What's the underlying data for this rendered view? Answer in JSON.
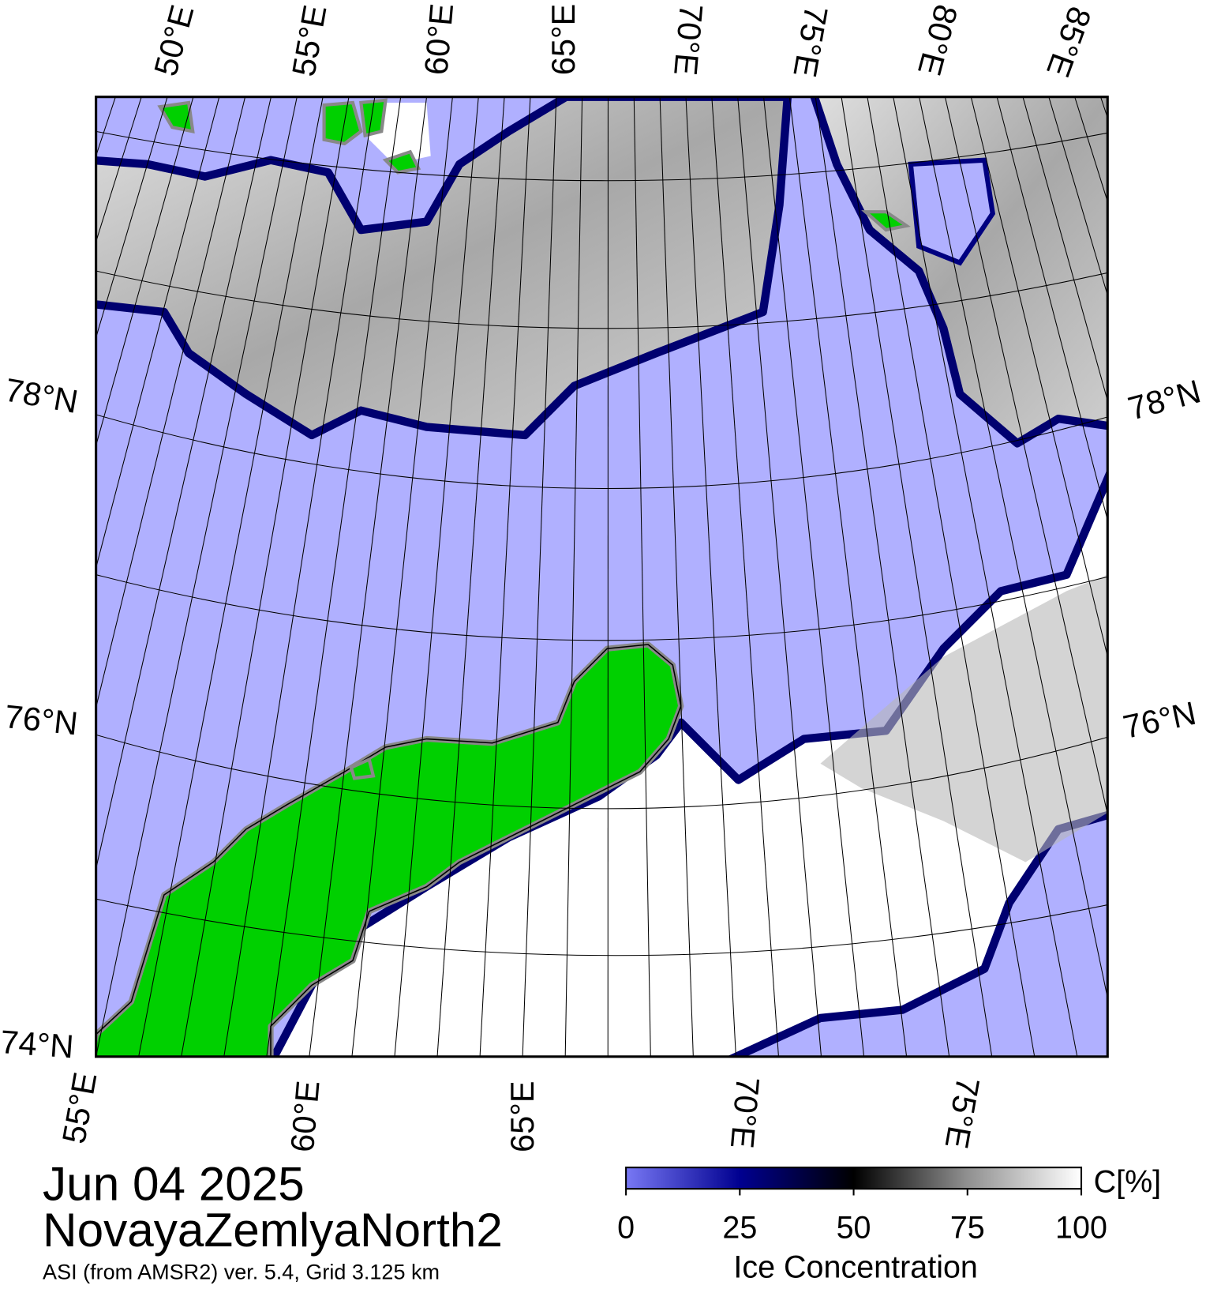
{
  "map": {
    "top_lon_labels": [
      "50°E",
      "55°E",
      "60°E",
      "65°E",
      "70°E",
      "75°E",
      "80°E",
      "85°E"
    ],
    "bottom_lon_labels": [
      "55°E",
      "60°E",
      "65°E",
      "70°E",
      "75°E"
    ],
    "left_lat_labels": [
      "78°N",
      "76°N",
      "74°N"
    ],
    "right_lat_labels": [
      "78°N",
      "76°N"
    ]
  },
  "title": {
    "date": "Jun 04 2025",
    "region": "NovayaZemlyaNorth2",
    "subtitle": "ASI (from AMSR2) ver. 5.4,  Grid 3.125 km"
  },
  "colorbar": {
    "label": "Ice Concentration",
    "unit": "C[%]",
    "range": [
      0,
      100
    ],
    "ticks": [
      0,
      25,
      50,
      75,
      100
    ]
  }
}
